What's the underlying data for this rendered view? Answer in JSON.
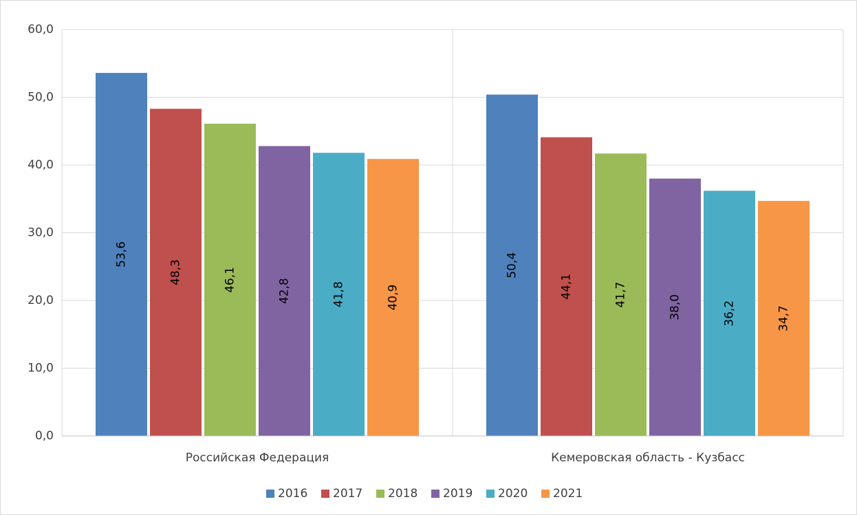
{
  "chart_data": {
    "type": "bar",
    "categories": [
      "Российская Федерация",
      "Кемеровская область - Кузбасс"
    ],
    "series": [
      {
        "name": "2016",
        "color": "#4f81bd",
        "values": [
          53.6,
          50.4
        ],
        "value_labels": [
          "53,6",
          "50,4"
        ]
      },
      {
        "name": "2017",
        "color": "#c0504d",
        "values": [
          48.3,
          44.1
        ],
        "value_labels": [
          "48,3",
          "44,1"
        ]
      },
      {
        "name": "2018",
        "color": "#9bbb59",
        "values": [
          46.1,
          41.7
        ],
        "value_labels": [
          "46,1",
          "41,7"
        ]
      },
      {
        "name": "2019",
        "color": "#8064a2",
        "values": [
          42.8,
          38.0
        ],
        "value_labels": [
          "42,8",
          "38,0"
        ]
      },
      {
        "name": "2020",
        "color": "#4bacc6",
        "values": [
          41.8,
          36.2
        ],
        "value_labels": [
          "41,8",
          "36,2"
        ]
      },
      {
        "name": "2021",
        "color": "#f79646",
        "values": [
          40.9,
          34.7
        ],
        "value_labels": [
          "40,9",
          "34,7"
        ]
      }
    ],
    "ylim": [
      0,
      60
    ],
    "yticks": [
      {
        "value": 0,
        "label": "0,0"
      },
      {
        "value": 10,
        "label": "10,0"
      },
      {
        "value": 20,
        "label": "20,0"
      },
      {
        "value": 30,
        "label": "30,0"
      },
      {
        "value": 40,
        "label": "40,0"
      },
      {
        "value": 50,
        "label": "50,0"
      },
      {
        "value": 60,
        "label": "60,0"
      }
    ],
    "grid": true,
    "legend": "bottom"
  }
}
